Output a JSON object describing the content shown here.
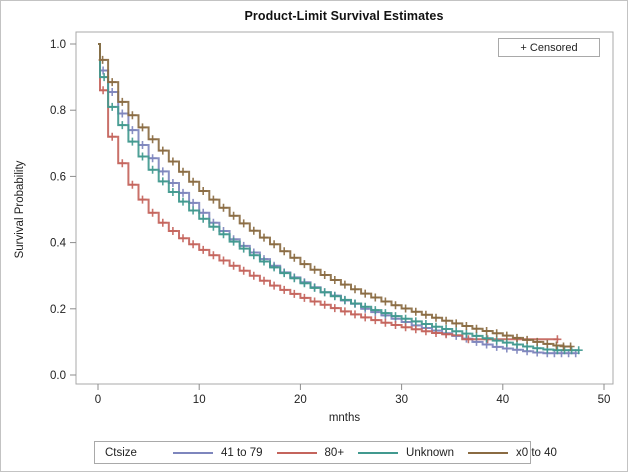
{
  "figure": {
    "title": "Product-Limit Survival Estimates",
    "inset_censored_label": "+ Censored"
  },
  "chart_data": {
    "type": "line",
    "subtype": "kaplan-meier-step-survival",
    "title": "Product-Limit Survival Estimates",
    "xlabel": "mnths",
    "ylabel": "Survival Probability",
    "xlim": [
      0,
      50
    ],
    "ylim": [
      0.0,
      1.0
    ],
    "x_ticks": [
      0,
      10,
      20,
      30,
      40,
      50
    ],
    "y_ticks": [
      0.0,
      0.2,
      0.4,
      0.6,
      0.8,
      1.0
    ],
    "grid": false,
    "legend_position": "bottom",
    "legend_title": "Ctsize",
    "censored_marker": "+",
    "frame_color": "#a9a9a9",
    "tick_color": "#8c8c8c",
    "text_color": "#222222",
    "series": [
      {
        "name": "41 to 79",
        "color": "#7e86bd",
        "steps": [
          [
            0,
            1
          ],
          [
            0.2,
            0.92
          ],
          [
            1,
            0.855
          ],
          [
            2,
            0.79
          ],
          [
            3,
            0.74
          ],
          [
            4,
            0.695
          ],
          [
            5,
            0.655
          ],
          [
            6,
            0.615
          ],
          [
            7,
            0.58
          ],
          [
            8,
            0.55
          ],
          [
            9,
            0.52
          ],
          [
            10,
            0.49
          ],
          [
            11,
            0.46
          ],
          [
            12,
            0.435
          ],
          [
            13,
            0.41
          ],
          [
            14,
            0.39
          ],
          [
            15,
            0.37
          ],
          [
            16,
            0.35
          ],
          [
            17,
            0.33
          ],
          [
            18,
            0.31
          ],
          [
            19,
            0.295
          ],
          [
            20,
            0.28
          ],
          [
            21,
            0.265
          ],
          [
            22,
            0.25
          ],
          [
            23,
            0.24
          ],
          [
            24,
            0.225
          ],
          [
            25,
            0.215
          ],
          [
            26,
            0.2
          ],
          [
            27,
            0.19
          ],
          [
            28,
            0.18
          ],
          [
            29,
            0.17
          ],
          [
            30,
            0.16
          ],
          [
            31,
            0.15
          ],
          [
            32,
            0.142
          ],
          [
            33,
            0.134
          ],
          [
            34,
            0.126
          ],
          [
            35,
            0.118
          ],
          [
            36,
            0.11
          ],
          [
            37,
            0.1
          ],
          [
            38,
            0.092
          ],
          [
            39,
            0.085
          ],
          [
            40,
            0.08
          ],
          [
            41,
            0.076
          ],
          [
            42,
            0.072
          ],
          [
            43,
            0.068
          ],
          [
            44,
            0.066
          ],
          [
            47.3,
            0.066
          ]
        ],
        "censor_times": [
          0.5,
          1.4,
          2.4,
          3.4,
          4.4,
          5.4,
          6.4,
          7.4,
          8.4,
          9.4,
          10.4,
          11.4,
          12.4,
          13.4,
          14.4,
          15.4,
          16.4,
          17.4,
          18.4,
          19.4,
          20.4,
          21.4,
          22.4,
          23.4,
          24.4,
          25.4,
          26.4,
          27.4,
          28.4,
          29.4,
          30.4,
          31.4,
          32.4,
          33.4,
          34.4,
          35.4,
          36.4,
          37.4,
          38.4,
          39.4,
          40.4,
          41.4,
          42.4,
          43.4,
          44.4,
          45.1,
          45.8,
          46.5,
          47.2
        ]
      },
      {
        "name": "80+",
        "color": "#c4645c",
        "steps": [
          [
            0,
            1
          ],
          [
            0.2,
            0.86
          ],
          [
            1,
            0.72
          ],
          [
            2,
            0.64
          ],
          [
            3,
            0.575
          ],
          [
            4,
            0.53
          ],
          [
            5,
            0.49
          ],
          [
            6,
            0.46
          ],
          [
            7,
            0.435
          ],
          [
            8,
            0.413
          ],
          [
            9,
            0.395
          ],
          [
            10,
            0.378
          ],
          [
            11,
            0.362
          ],
          [
            12,
            0.346
          ],
          [
            13,
            0.33
          ],
          [
            14,
            0.315
          ],
          [
            15,
            0.3
          ],
          [
            16,
            0.285
          ],
          [
            17,
            0.27
          ],
          [
            18,
            0.257
          ],
          [
            19,
            0.245
          ],
          [
            20,
            0.233
          ],
          [
            21,
            0.222
          ],
          [
            22,
            0.212
          ],
          [
            23,
            0.202
          ],
          [
            24,
            0.192
          ],
          [
            25,
            0.183
          ],
          [
            26,
            0.174
          ],
          [
            27,
            0.166
          ],
          [
            28,
            0.158
          ],
          [
            29,
            0.151
          ],
          [
            30,
            0.144
          ],
          [
            31,
            0.138
          ],
          [
            32,
            0.132
          ],
          [
            33,
            0.127
          ],
          [
            34,
            0.123
          ],
          [
            35,
            0.12
          ],
          [
            36,
            0.108
          ],
          [
            45.5,
            0.108
          ]
        ],
        "censor_times": [
          0.5,
          1.4,
          2.4,
          3.4,
          4.4,
          5.4,
          6.4,
          7.4,
          8.4,
          9.4,
          10.4,
          11.4,
          12.4,
          13.4,
          14.4,
          15.4,
          16.4,
          17.4,
          18.4,
          19.4,
          20.4,
          21.4,
          22.4,
          23.4,
          24.4,
          25.4,
          26.4,
          27.4,
          28.4,
          29.4,
          30.4,
          31.4,
          32.4,
          33.4,
          34.4,
          36.6,
          38.5,
          45.4
        ]
      },
      {
        "name": "Unknown",
        "color": "#41998f",
        "steps": [
          [
            0,
            1
          ],
          [
            0.2,
            0.9
          ],
          [
            1,
            0.81
          ],
          [
            2,
            0.755
          ],
          [
            3,
            0.705
          ],
          [
            4,
            0.66
          ],
          [
            5,
            0.62
          ],
          [
            6,
            0.585
          ],
          [
            7,
            0.553
          ],
          [
            8,
            0.524
          ],
          [
            9,
            0.497
          ],
          [
            10,
            0.472
          ],
          [
            11,
            0.448
          ],
          [
            12,
            0.425
          ],
          [
            13,
            0.403
          ],
          [
            14,
            0.382
          ],
          [
            15,
            0.362
          ],
          [
            16,
            0.343
          ],
          [
            17,
            0.325
          ],
          [
            18,
            0.308
          ],
          [
            19,
            0.292
          ],
          [
            20,
            0.277
          ],
          [
            21,
            0.263
          ],
          [
            22,
            0.25
          ],
          [
            23,
            0.238
          ],
          [
            24,
            0.227
          ],
          [
            25,
            0.216
          ],
          [
            26,
            0.206
          ],
          [
            27,
            0.196
          ],
          [
            28,
            0.187
          ],
          [
            29,
            0.178
          ],
          [
            30,
            0.17
          ],
          [
            31,
            0.162
          ],
          [
            32,
            0.154
          ],
          [
            33,
            0.146
          ],
          [
            34,
            0.139
          ],
          [
            35,
            0.132
          ],
          [
            36,
            0.125
          ],
          [
            37,
            0.118
          ],
          [
            38,
            0.111
          ],
          [
            39,
            0.104
          ],
          [
            40,
            0.098
          ],
          [
            41,
            0.092
          ],
          [
            42,
            0.086
          ],
          [
            43,
            0.081
          ],
          [
            44,
            0.077
          ],
          [
            45,
            0.075
          ],
          [
            47.6,
            0.075
          ]
        ],
        "censor_times": [
          0.6,
          1.4,
          2.4,
          3.4,
          4.4,
          5.4,
          6.4,
          7.4,
          8.4,
          9.4,
          10.4,
          11.4,
          12.4,
          13.4,
          14.4,
          15.4,
          16.4,
          17.4,
          18.4,
          19.4,
          20.4,
          21.4,
          22.4,
          23.4,
          24.4,
          25.4,
          26.4,
          27.4,
          28.4,
          29.4,
          30.4,
          31.4,
          32.4,
          33.4,
          34.4,
          35.4,
          36.4,
          37.4,
          38.4,
          39.4,
          40.4,
          41.4,
          42.4,
          43.4,
          44.4,
          45.4,
          46.1,
          46.8,
          47.5
        ]
      },
      {
        "name": "x0 to 40",
        "color": "#8a6b42",
        "steps": [
          [
            0,
            1
          ],
          [
            0.2,
            0.952
          ],
          [
            1,
            0.885
          ],
          [
            2,
            0.825
          ],
          [
            3,
            0.785
          ],
          [
            4,
            0.748
          ],
          [
            5,
            0.712
          ],
          [
            6,
            0.678
          ],
          [
            7,
            0.645
          ],
          [
            8,
            0.614
          ],
          [
            9,
            0.584
          ],
          [
            10,
            0.556
          ],
          [
            11,
            0.53
          ],
          [
            12,
            0.505
          ],
          [
            13,
            0.481
          ],
          [
            14,
            0.458
          ],
          [
            15,
            0.436
          ],
          [
            16,
            0.415
          ],
          [
            17,
            0.395
          ],
          [
            18,
            0.374
          ],
          [
            19,
            0.354
          ],
          [
            20,
            0.335
          ],
          [
            21,
            0.318
          ],
          [
            22,
            0.302
          ],
          [
            23,
            0.287
          ],
          [
            24,
            0.273
          ],
          [
            25,
            0.259
          ],
          [
            26,
            0.246
          ],
          [
            27,
            0.234
          ],
          [
            28,
            0.222
          ],
          [
            29,
            0.211
          ],
          [
            30,
            0.201
          ],
          [
            31,
            0.191
          ],
          [
            32,
            0.182
          ],
          [
            33,
            0.173
          ],
          [
            34,
            0.164
          ],
          [
            35,
            0.156
          ],
          [
            36,
            0.148
          ],
          [
            37,
            0.14
          ],
          [
            38,
            0.133
          ],
          [
            39,
            0.126
          ],
          [
            40,
            0.119
          ],
          [
            41,
            0.112
          ],
          [
            42,
            0.106
          ],
          [
            43,
            0.1
          ],
          [
            44,
            0.094
          ],
          [
            45,
            0.089
          ],
          [
            46,
            0.086
          ],
          [
            46.8,
            0.086
          ]
        ],
        "censor_times": [
          0.45,
          1.4,
          2.4,
          3.4,
          4.4,
          5.4,
          6.4,
          7.4,
          8.4,
          9.4,
          10.4,
          11.4,
          12.4,
          13.4,
          14.4,
          15.4,
          16.4,
          17.4,
          18.4,
          19.4,
          20.4,
          21.4,
          22.4,
          23.4,
          24.4,
          25.4,
          26.4,
          27.4,
          28.4,
          29.4,
          30.4,
          31.4,
          32.4,
          33.4,
          34.4,
          35.4,
          36.4,
          37.4,
          38.4,
          39.4,
          40.4,
          41.4,
          42.4,
          43.4,
          44.4,
          45.3,
          46.0,
          46.7
        ]
      }
    ]
  }
}
